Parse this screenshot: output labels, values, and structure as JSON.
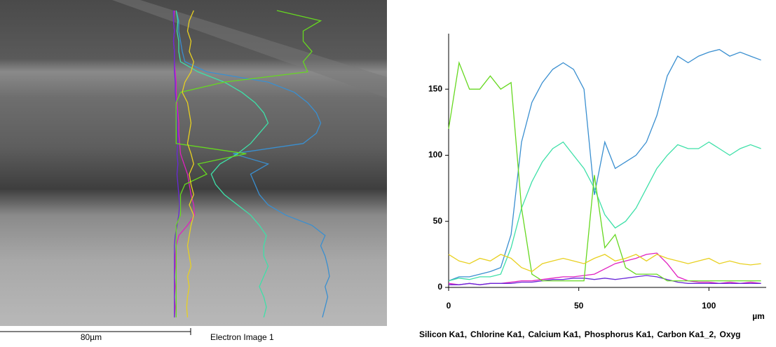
{
  "image": {
    "scale_bar": "80µm",
    "caption": "Electron Image 1"
  },
  "chart_data": {
    "type": "line",
    "xlabel": "µm",
    "x": [
      0,
      4,
      8,
      12,
      16,
      20,
      24,
      28,
      32,
      36,
      40,
      44,
      48,
      52,
      56,
      60,
      64,
      68,
      72,
      76,
      80,
      84,
      88,
      92,
      96,
      100,
      104,
      108,
      112,
      116,
      120
    ],
    "xlim": [
      0,
      122
    ],
    "ylim": [
      0,
      192
    ],
    "xticks": [
      0,
      50,
      100
    ],
    "yticks": [
      0,
      50,
      100,
      150
    ],
    "series": [
      {
        "name": "Silicon Ka1,",
        "color": "#e020c0",
        "values": [
          3,
          2,
          3,
          2,
          3,
          3,
          4,
          5,
          5,
          6,
          7,
          8,
          8,
          9,
          10,
          14,
          18,
          20,
          22,
          25,
          26,
          18,
          8,
          5,
          4,
          4,
          3,
          4,
          3,
          4,
          3
        ]
      },
      {
        "name": "Chlorine Ka1,",
        "color": "#6a28d8",
        "values": [
          2,
          2,
          3,
          2,
          3,
          3,
          3,
          4,
          4,
          5,
          6,
          6,
          7,
          7,
          6,
          7,
          6,
          7,
          8,
          9,
          8,
          6,
          4,
          3,
          3,
          3,
          3,
          3,
          3,
          3,
          3
        ]
      },
      {
        "name": "Calcium Ka1,",
        "color": "#3a8fd0",
        "values": [
          5,
          8,
          8,
          10,
          12,
          15,
          40,
          110,
          140,
          155,
          165,
          170,
          165,
          150,
          70,
          110,
          90,
          95,
          100,
          110,
          130,
          160,
          175,
          170,
          175,
          178,
          180,
          175,
          178,
          175,
          172
        ]
      },
      {
        "name": "Phosphorus Ka1,",
        "color": "#3ee0a8",
        "values": [
          5,
          7,
          6,
          8,
          8,
          10,
          30,
          60,
          80,
          95,
          105,
          110,
          100,
          90,
          75,
          55,
          45,
          50,
          60,
          75,
          90,
          100,
          108,
          105,
          105,
          110,
          105,
          100,
          105,
          108,
          105
        ]
      },
      {
        "name": "Carbon Ka1_2,",
        "color": "#66d820",
        "values": [
          120,
          170,
          150,
          150,
          160,
          150,
          155,
          60,
          10,
          5,
          5,
          5,
          5,
          5,
          85,
          30,
          40,
          15,
          10,
          10,
          10,
          5,
          5,
          5,
          5,
          5,
          5,
          5,
          5,
          5,
          5
        ]
      },
      {
        "name": "Oxyg",
        "color": "#e8d020",
        "values": [
          25,
          20,
          18,
          22,
          20,
          25,
          22,
          15,
          12,
          18,
          20,
          22,
          20,
          18,
          22,
          25,
          20,
          22,
          25,
          20,
          25,
          22,
          20,
          18,
          20,
          22,
          18,
          20,
          18,
          17,
          18
        ]
      }
    ]
  }
}
